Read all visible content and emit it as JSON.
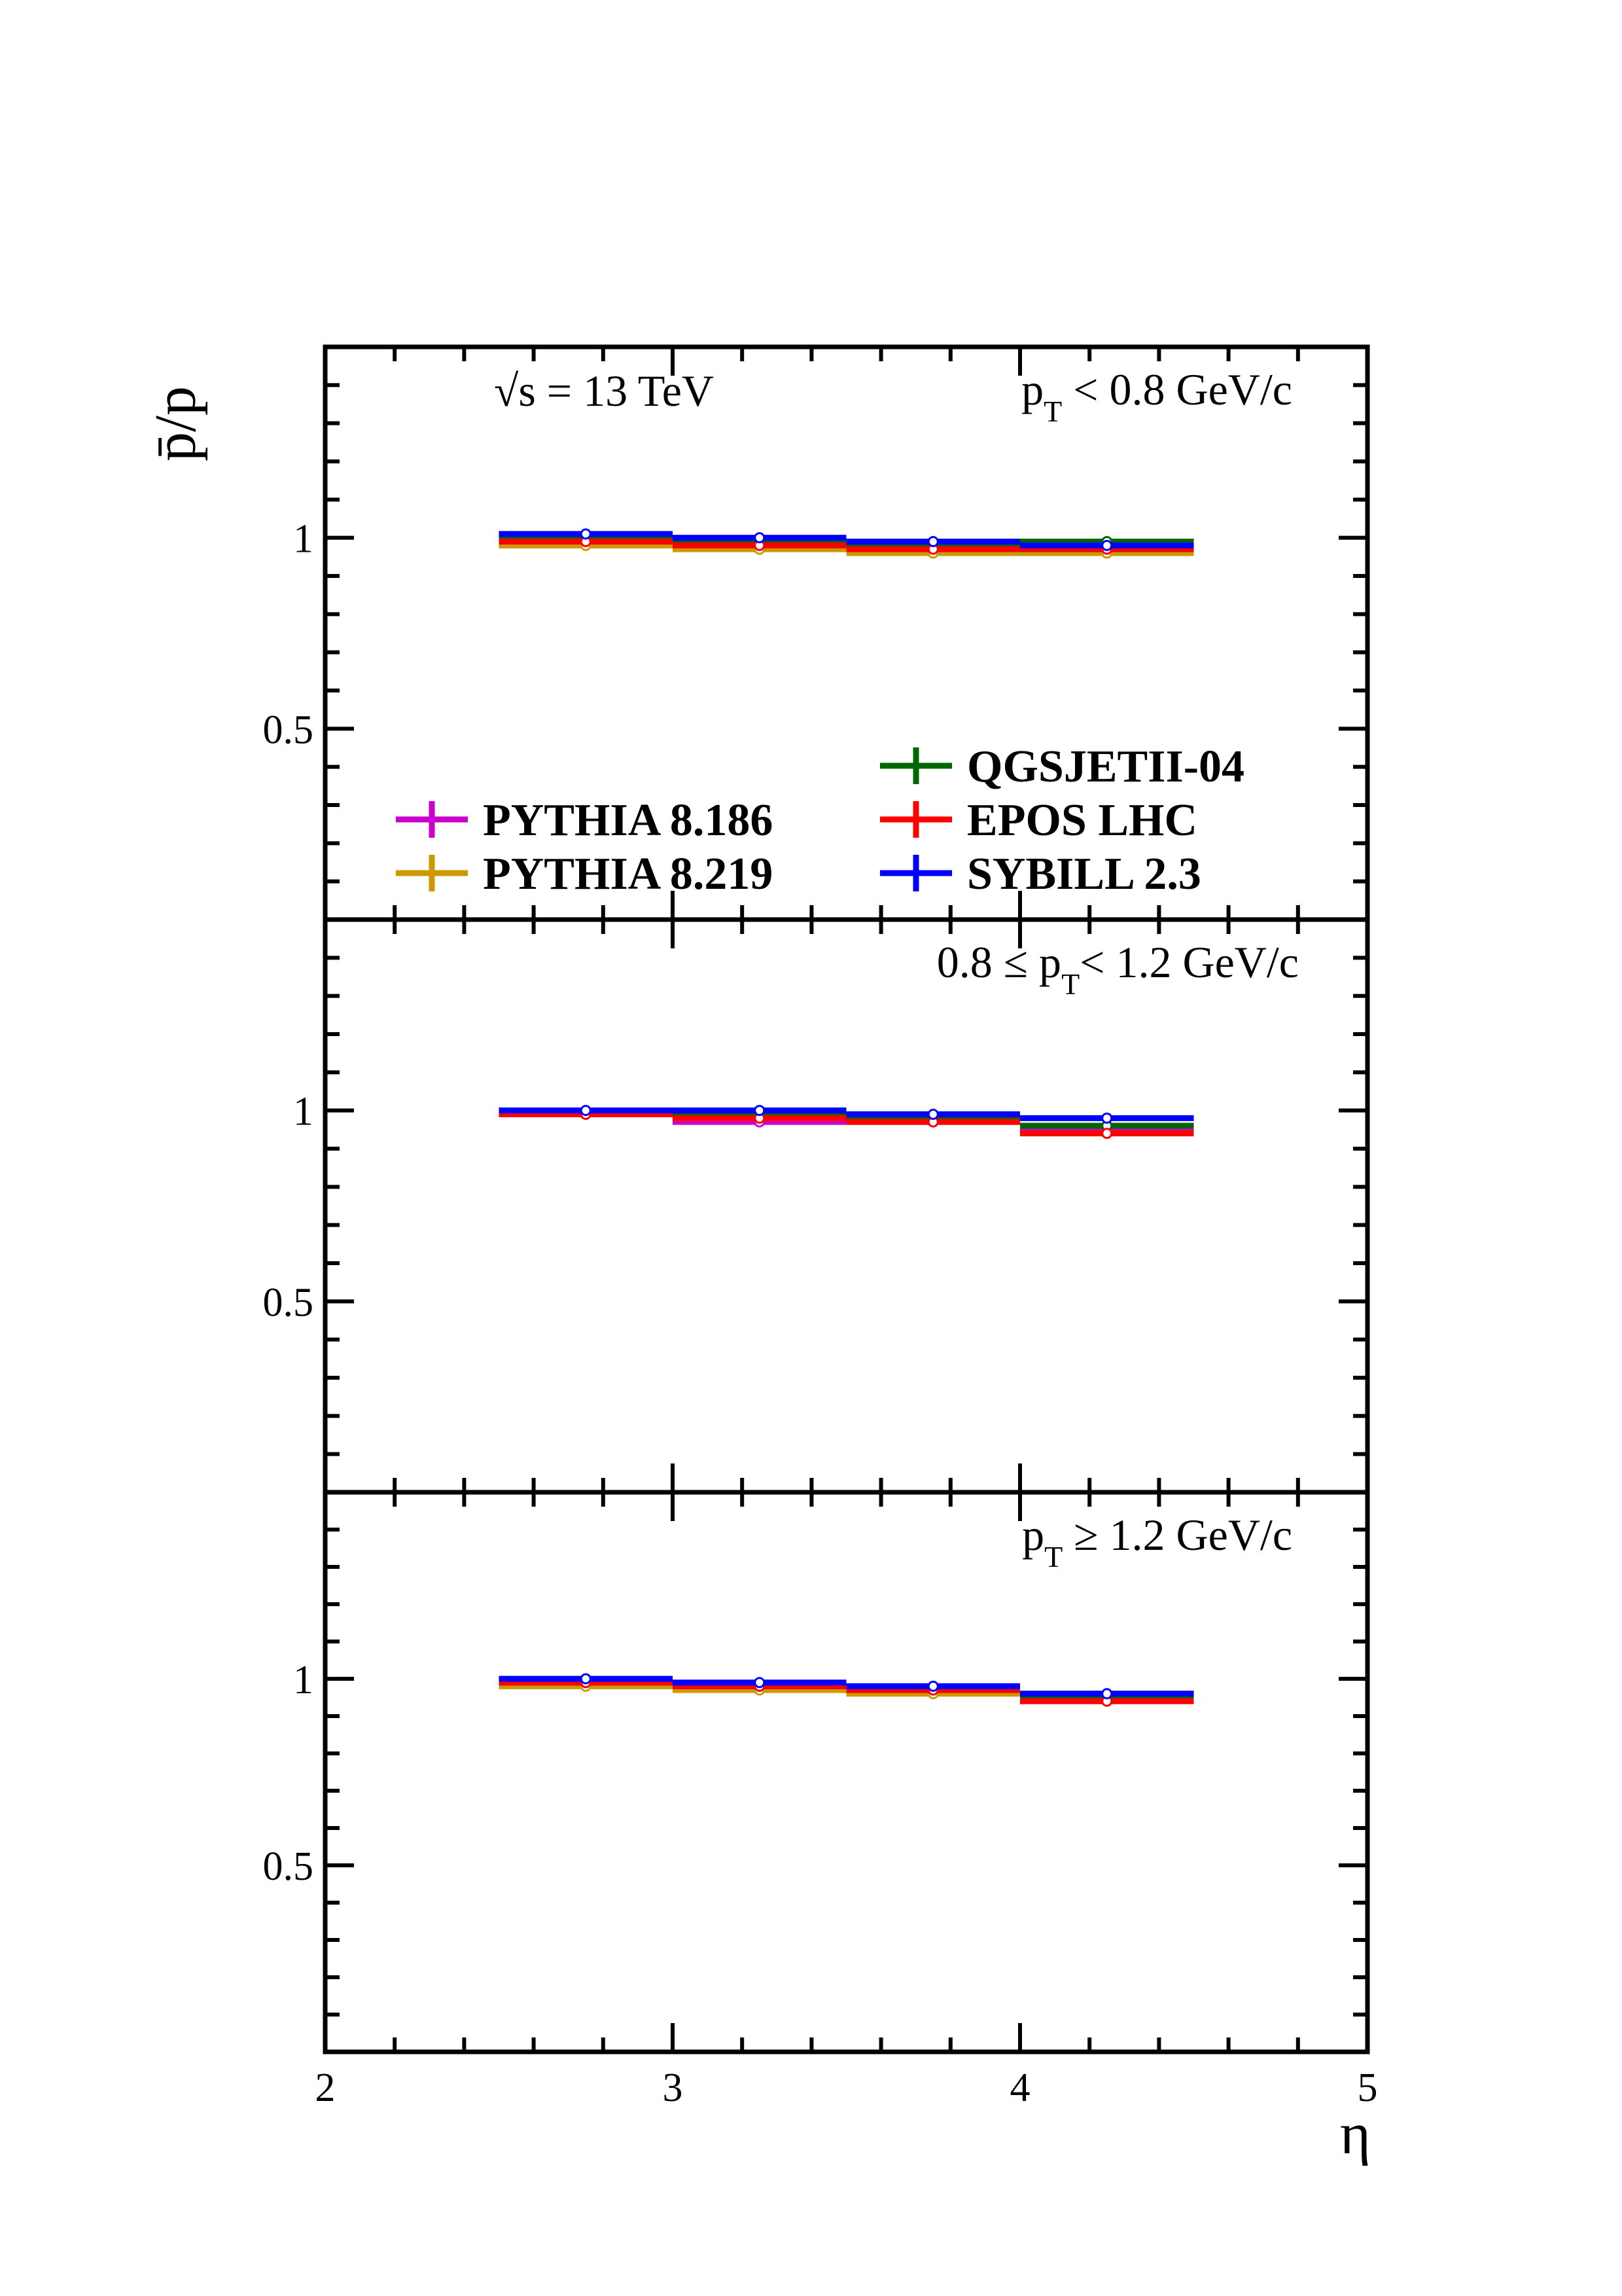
{
  "chart_data": {
    "type": "line",
    "ylabel": "p̄/p",
    "xlabel": "η",
    "xlim": [
      2,
      5
    ],
    "ylim": [
      0,
      1.5
    ],
    "x_ticks": [
      "2",
      "3",
      "4",
      "5"
    ],
    "y_ticks": [
      "0.5",
      "1"
    ],
    "sqrt_s_label": "√s = 13 TeV",
    "bins": [
      [
        2.5,
        3.0
      ],
      [
        3.0,
        3.5
      ],
      [
        3.5,
        4.0
      ],
      [
        4.0,
        4.5
      ]
    ],
    "panels": [
      {
        "pt_label": {
          "pre": "p",
          "sub": "T",
          "post": " < 0.8 GeV/c"
        },
        "series": [
          {
            "name": "PYTHIA 8.186",
            "color": "#cc00cc",
            "values": [
              0.99,
              0.98,
              0.97,
              0.96
            ]
          },
          {
            "name": "PYTHIA 8.219",
            "color": "#cc9900",
            "values": [
              0.98,
              0.97,
              0.96,
              0.96
            ]
          },
          {
            "name": "QGSJETII-04",
            "color": "#006600",
            "values": [
              1.0,
              0.99,
              0.98,
              0.99
            ]
          },
          {
            "name": "EPOS LHC",
            "color": "#ff0000",
            "values": [
              0.99,
              0.98,
              0.97,
              0.97
            ]
          },
          {
            "name": "SYBILL 2.3",
            "color": "#0000ff",
            "values": [
              1.01,
              1.0,
              0.99,
              0.98
            ]
          }
        ]
      },
      {
        "pt_label": {
          "pre": "0.8 ≤ p",
          "sub": "T",
          "post": "< 1.2 GeV/c"
        },
        "series": [
          {
            "name": "PYTHIA 8.186",
            "color": "#cc00cc",
            "values": [
              0.99,
              0.97,
              0.97,
              0.95
            ]
          },
          {
            "name": "PYTHIA 8.219",
            "color": "#cc9900",
            "values": [
              0.99,
              0.98,
              0.97,
              0.94
            ]
          },
          {
            "name": "QGSJETII-04",
            "color": "#006600",
            "values": [
              0.99,
              0.99,
              0.98,
              0.96
            ]
          },
          {
            "name": "EPOS LHC",
            "color": "#ff0000",
            "values": [
              0.99,
              0.98,
              0.97,
              0.94
            ]
          },
          {
            "name": "SYBILL 2.3",
            "color": "#0000ff",
            "values": [
              1.0,
              1.0,
              0.99,
              0.98
            ]
          }
        ]
      },
      {
        "pt_label": {
          "pre": "p",
          "sub": "T",
          "post": " ≥ 1.2 GeV/c"
        },
        "series": [
          {
            "name": "PYTHIA 8.186",
            "color": "#cc00cc",
            "values": [
              0.99,
              0.98,
              0.98,
              0.96
            ]
          },
          {
            "name": "PYTHIA 8.219",
            "color": "#cc9900",
            "values": [
              0.98,
              0.97,
              0.96,
              0.95
            ]
          },
          {
            "name": "QGSJETII-04",
            "color": "#006600",
            "values": [
              0.99,
              0.98,
              0.97,
              0.95
            ]
          },
          {
            "name": "EPOS LHC",
            "color": "#ff0000",
            "values": [
              0.99,
              0.98,
              0.97,
              0.94
            ]
          },
          {
            "name": "SYBILL 2.3",
            "color": "#0000ff",
            "values": [
              1.0,
              0.99,
              0.98,
              0.96
            ]
          }
        ]
      }
    ],
    "legend_placement": "bottom of top panel"
  }
}
